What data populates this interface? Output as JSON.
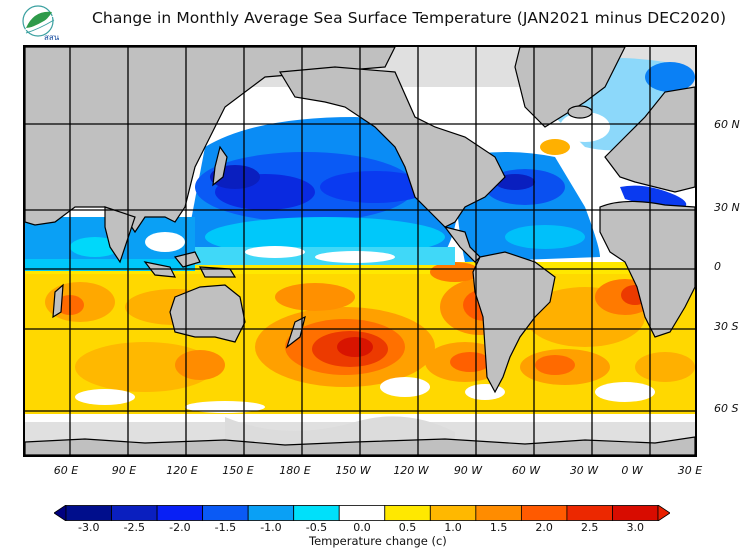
{
  "header": {
    "logo_text": "สสน",
    "title": "Change in Monthly Average Sea Surface Temperature (JAN2021 minus DEC2020)"
  },
  "map": {
    "projection": "equirectangular",
    "longitude_range": "40 E to 40 E (wrapped, Pacific-centered)",
    "land_color": "#c0c0c0",
    "ice_color": "#e0e0e0",
    "coastline_color": "#000000",
    "latitude_labels": [
      "60 N",
      "30 N",
      "0",
      "30 S",
      "60 S"
    ],
    "longitude_labels": [
      "60 E",
      "90 E",
      "120 E",
      "150 E",
      "180 E",
      "150 W",
      "120 W",
      "90 W",
      "60 W",
      "30 W",
      "0 W",
      "30 E"
    ],
    "observed_patterns": [
      {
        "region": "North Pacific",
        "change": "cooling",
        "range_c": "-0.5 to -2.5"
      },
      {
        "region": "North Atlantic (western)",
        "change": "cooling",
        "range_c": "-1.0 to -2.5"
      },
      {
        "region": "Mediterranean / Baltic",
        "change": "cooling",
        "range_c": "-1.5 to -2.5"
      },
      {
        "region": "North Indian Ocean",
        "change": "cooling",
        "range_c": "-0.5 to -1.5"
      },
      {
        "region": "South Pacific (central)",
        "change": "warming",
        "range_c": "1.5 to 3.0"
      },
      {
        "region": "South Atlantic",
        "change": "warming",
        "range_c": "1.0 to 2.5"
      },
      {
        "region": "South Indian Ocean",
        "change": "warming",
        "range_c": "0.5 to 2.0"
      }
    ]
  },
  "colorbar": {
    "title": "Temperature change  (c)",
    "units": "c",
    "tick_labels": [
      "-3.0",
      "-2.5",
      "-2.0",
      "-1.5",
      "-1.0",
      "-0.5",
      "0.0",
      "0.5",
      "1.0",
      "1.5",
      "2.0",
      "2.5",
      "3.0"
    ],
    "bins": [
      {
        "range": "< -3.0",
        "color": "#00007f",
        "arrow": "left"
      },
      {
        "range": "-3.0 to -2.5",
        "color": "#000e8c"
      },
      {
        "range": "-2.5 to -2.0",
        "color": "#0a1fbf"
      },
      {
        "range": "-2.0 to -1.5",
        "color": "#0820f5"
      },
      {
        "range": "-1.5 to -1.0",
        "color": "#0a5af5"
      },
      {
        "range": "-1.0 to -0.5",
        "color": "#0aa0f5"
      },
      {
        "range": "-0.5 to 0.0",
        "color": "#00e0fa"
      },
      {
        "range": "0.0",
        "color": "#ffffff"
      },
      {
        "range": "0.0 to 0.5",
        "color": "#ffe800"
      },
      {
        "range": "0.5 to 1.0",
        "color": "#ffb800"
      },
      {
        "range": "1.0 to 1.5",
        "color": "#ff8c00"
      },
      {
        "range": "1.5 to 2.0",
        "color": "#ff5a00"
      },
      {
        "range": "2.0 to 2.5",
        "color": "#ec2800"
      },
      {
        "range": "2.5 to 3.0",
        "color": "#d80c00"
      },
      {
        "range": "> 3.0",
        "color": "#e82000",
        "arrow": "right"
      }
    ]
  }
}
